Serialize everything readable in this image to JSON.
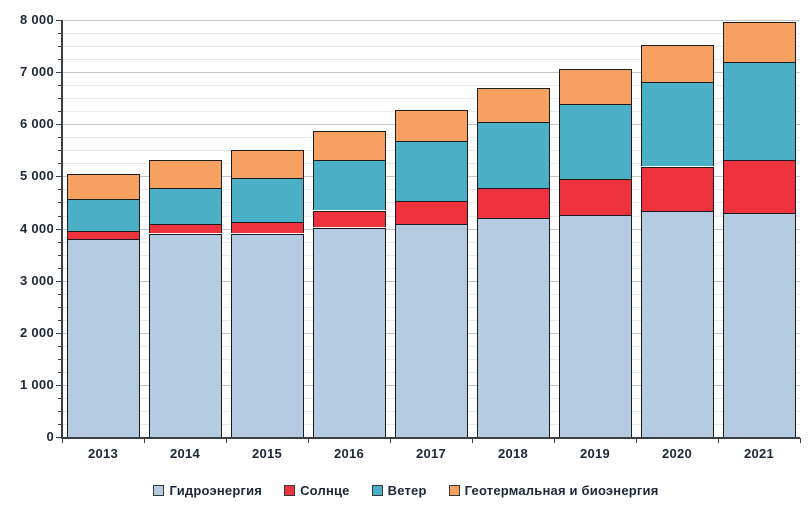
{
  "chart_data": {
    "type": "bar",
    "stacked": true,
    "title": "",
    "xlabel": "",
    "ylabel": "",
    "categories": [
      "2013",
      "2014",
      "2015",
      "2016",
      "2017",
      "2018",
      "2019",
      "2020",
      "2021"
    ],
    "series": [
      {
        "name": "Гидроэнергия",
        "color": "#b5cbe2",
        "values": [
          3800,
          3905,
          3905,
          4020,
          4085,
          4200,
          4260,
          4345,
          4295
        ]
      },
      {
        "name": "Солнце",
        "color": "#ee323e",
        "values": [
          145,
          190,
          225,
          325,
          435,
          575,
          690,
          845,
          1015
        ]
      },
      {
        "name": "Ветер",
        "color": "#4bafc5",
        "values": [
          620,
          690,
          845,
          975,
          1165,
          1260,
          1430,
          1615,
          1885
        ]
      },
      {
        "name": "Геотермальная и биоэнергия",
        "color": "#f6a061",
        "values": [
          490,
          535,
          535,
          560,
          595,
          665,
          685,
          725,
          770
        ]
      }
    ],
    "totals": [
      5055,
      5320,
      5510,
      5880,
      6280,
      6700,
      7065,
      7530,
      7965
    ],
    "ylim": [
      0,
      8000
    ],
    "y_major_step": 1000,
    "y_minor_step": 250,
    "y_tick_labels": [
      "0",
      "1 000",
      "2 000",
      "3 000",
      "4 000",
      "5 000",
      "6 000",
      "7 000",
      "8 000"
    ],
    "grid": "major+minor horizontal",
    "legend_position": "bottom",
    "bar_border_color": "#1c1c1c"
  }
}
